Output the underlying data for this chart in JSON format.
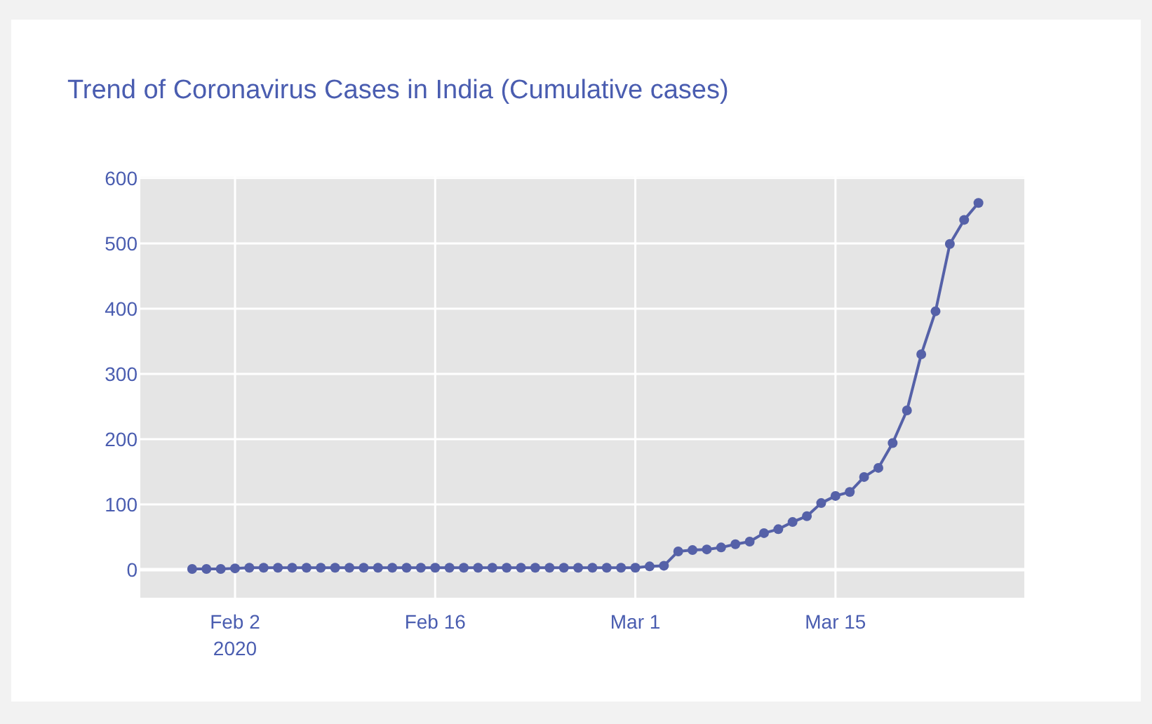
{
  "chart_data": {
    "type": "line",
    "title": "Trend of Coronavirus Cases in India (Cumulative cases)",
    "x": [
      "2020-01-30",
      "2020-01-31",
      "2020-02-01",
      "2020-02-02",
      "2020-02-03",
      "2020-02-04",
      "2020-02-05",
      "2020-02-06",
      "2020-02-07",
      "2020-02-08",
      "2020-02-09",
      "2020-02-10",
      "2020-02-11",
      "2020-02-12",
      "2020-02-13",
      "2020-02-14",
      "2020-02-15",
      "2020-02-16",
      "2020-02-17",
      "2020-02-18",
      "2020-02-19",
      "2020-02-20",
      "2020-02-21",
      "2020-02-22",
      "2020-02-23",
      "2020-02-24",
      "2020-02-25",
      "2020-02-26",
      "2020-02-27",
      "2020-02-28",
      "2020-02-29",
      "2020-03-01",
      "2020-03-02",
      "2020-03-03",
      "2020-03-04",
      "2020-03-05",
      "2020-03-06",
      "2020-03-07",
      "2020-03-08",
      "2020-03-09",
      "2020-03-10",
      "2020-03-11",
      "2020-03-12",
      "2020-03-13",
      "2020-03-14",
      "2020-03-15",
      "2020-03-16",
      "2020-03-17",
      "2020-03-18",
      "2020-03-19",
      "2020-03-20",
      "2020-03-21",
      "2020-03-22",
      "2020-03-23",
      "2020-03-24",
      "2020-03-25"
    ],
    "series": [
      {
        "color": "#5561a8",
        "values": [
          1,
          1,
          1,
          2,
          3,
          3,
          3,
          3,
          3,
          3,
          3,
          3,
          3,
          3,
          3,
          3,
          3,
          3,
          3,
          3,
          3,
          3,
          3,
          3,
          3,
          3,
          3,
          3,
          3,
          3,
          3,
          3,
          5,
          6,
          28,
          30,
          31,
          34,
          39,
          43,
          56,
          62,
          73,
          82,
          102,
          113,
          119,
          142,
          156,
          194,
          244,
          330,
          396,
          499,
          536,
          562
        ]
      }
    ],
    "xlim": [
      "2020-01-26T09:00",
      "2020-03-28T05:00"
    ],
    "xticks": [
      {
        "value": "2020-02-02",
        "label": "Feb 2\n2020"
      },
      {
        "value": "2020-02-16",
        "label": "Feb 16"
      },
      {
        "value": "2020-03-01",
        "label": "Mar 1"
      },
      {
        "value": "2020-03-15",
        "label": "Mar 15"
      }
    ],
    "ylim": [
      -43,
      602
    ],
    "yticks": [
      0,
      100,
      200,
      300,
      400,
      500,
      600
    ],
    "grid": true,
    "marker": "circle",
    "line_style": "solid"
  }
}
